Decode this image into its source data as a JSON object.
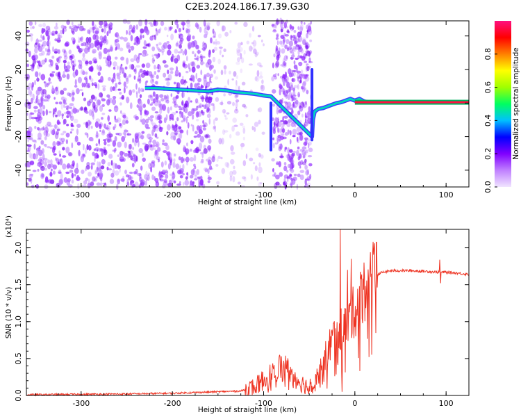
{
  "figure_title": "C2E3.2024.186.17.39.G30",
  "chart_data": [
    {
      "type": "heatmap",
      "title": "",
      "xlabel": "Height of straight line (km)",
      "ylabel": "Frequency (Hz)",
      "xlim": [
        -360,
        125
      ],
      "ylim": [
        -50,
        49
      ],
      "xticks": [
        -300,
        -200,
        -100,
        0,
        100
      ],
      "yticks": [
        -40,
        -20,
        0,
        20,
        40
      ],
      "grid": false,
      "colorbar": {
        "label": "Normalized spectral amplitude",
        "range": [
          0,
          1
        ],
        "ticks": [
          "0.0",
          "0.2",
          "0.4",
          "0.6",
          "0.8"
        ],
        "colormap": [
          "#f0e4ff",
          "#c080ff",
          "#8000ff",
          "#0000ff",
          "#00c0ff",
          "#00ff60",
          "#a0ff00",
          "#ffff00",
          "#ff8000",
          "#ff0000",
          "#ff1080"
        ]
      },
      "features": {
        "noise_region_x": [
          -360,
          -155
        ],
        "faint_region_x": [
          -155,
          -100
        ],
        "blank_region_x": [
          -100,
          -90
        ],
        "second_noise_region_x": [
          -90,
          -48
        ],
        "ridge": [
          [
            -230,
            9
          ],
          [
            -220,
            9
          ],
          [
            -160,
            7
          ],
          [
            -150,
            8
          ],
          [
            -140,
            7.5
          ],
          [
            -130,
            6.5
          ],
          [
            -120,
            6
          ],
          [
            -110,
            5.5
          ],
          [
            -100,
            4.5
          ],
          [
            -92,
            4
          ],
          [
            -47,
            -20
          ],
          [
            -46,
            -10
          ],
          [
            -44,
            -5
          ],
          [
            -40,
            -3.5
          ],
          [
            -35,
            -3
          ],
          [
            -30,
            -2
          ],
          [
            -25,
            -1
          ],
          [
            -20,
            0
          ],
          [
            -15,
            0.5
          ],
          [
            -10,
            1.5
          ],
          [
            -5,
            2.5
          ],
          [
            0,
            1.5
          ],
          [
            5,
            2.5
          ],
          [
            10,
            1
          ],
          [
            15,
            0.5
          ],
          [
            125,
            0.5
          ]
        ],
        "steady_tone_start_x": 0,
        "steady_tone_freq": 0.5
      }
    },
    {
      "type": "line",
      "title": "",
      "xlabel": "Height of straight line (km)",
      "ylabel": "SNR (10 * v/v)",
      "y_scale_label": "(x10⁴)",
      "xlim": [
        -360,
        125
      ],
      "ylim": [
        0,
        2.25
      ],
      "xticks": [
        -300,
        -200,
        -100,
        0,
        100
      ],
      "yticks": [
        "0.0",
        "0.5",
        "1.0",
        "1.5",
        "2.0"
      ],
      "grid": false,
      "series": [
        {
          "color": "#ee3322",
          "envelope": [
            [
              -360,
              0.01
            ],
            [
              -250,
              0.02
            ],
            [
              -200,
              0.03
            ],
            [
              -150,
              0.05
            ],
            [
              -125,
              0.06
            ],
            [
              -110,
              0.12
            ],
            [
              -95,
              0.25
            ],
            [
              -85,
              0.4
            ],
            [
              -75,
              0.38
            ],
            [
              -70,
              0.3
            ],
            [
              -62,
              0.2
            ],
            [
              -52,
              0.12
            ],
            [
              -45,
              0.2
            ],
            [
              -40,
              0.3
            ],
            [
              -35,
              0.42
            ],
            [
              -30,
              0.6
            ],
            [
              -25,
              0.75
            ],
            [
              -20,
              0.85
            ],
            [
              -15,
              0.9
            ],
            [
              -10,
              0.95
            ],
            [
              -5,
              1.05
            ],
            [
              0,
              1.15
            ],
            [
              5,
              1.28
            ],
            [
              10,
              1.42
            ],
            [
              15,
              1.52
            ],
            [
              20,
              1.6
            ],
            [
              28,
              1.66
            ],
            [
              40,
              1.69
            ],
            [
              60,
              1.69
            ],
            [
              80,
              1.68
            ],
            [
              90,
              1.67
            ],
            [
              100,
              1.67
            ],
            [
              110,
              1.66
            ],
            [
              125,
              1.64
            ]
          ],
          "spikes": [
            [
              -16,
              2.25
            ],
            [
              -14,
              0.05
            ],
            [
              -8,
              1.7
            ],
            [
              -4,
              1.85
            ],
            [
              10,
              1.8
            ],
            [
              93,
              1.84
            ],
            [
              94,
              1.52
            ]
          ]
        }
      ]
    }
  ]
}
